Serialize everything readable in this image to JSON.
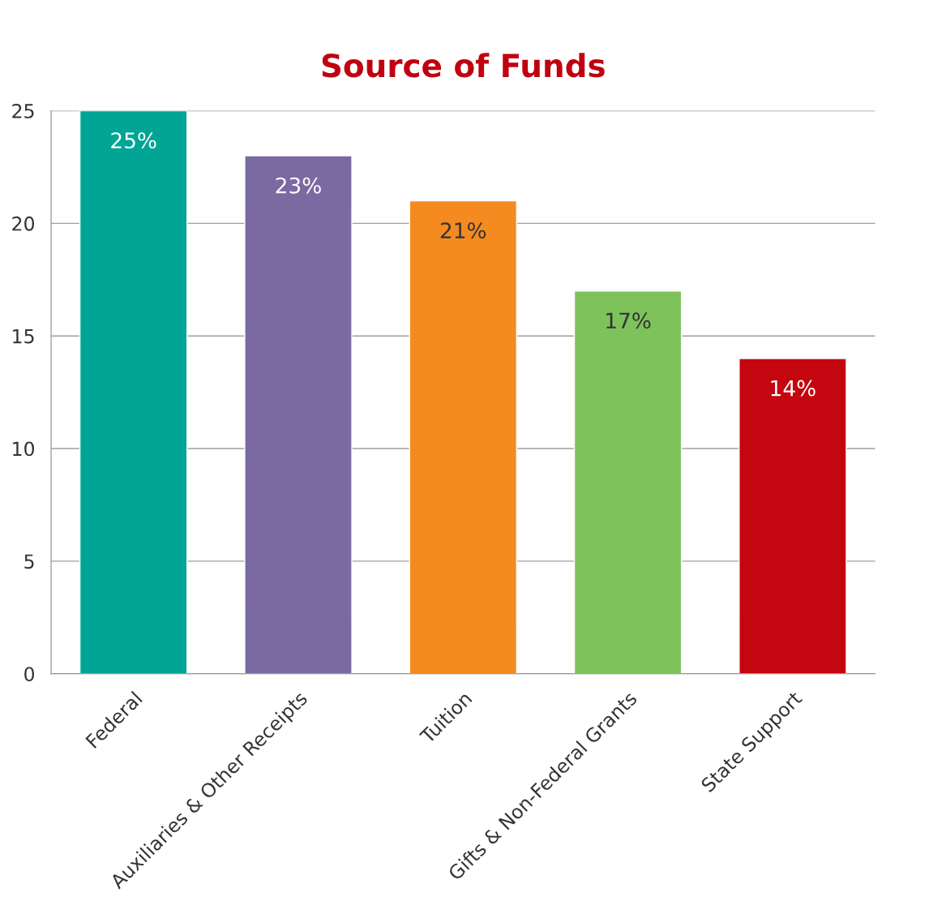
{
  "chart_data": {
    "type": "bar",
    "title": "Source of Funds",
    "categories": [
      "Federal",
      "Auxiliaries & Other Receipts",
      "Tuition",
      "Gifts & Non-Federal Grants",
      "State Support"
    ],
    "values": [
      25,
      23,
      21,
      17,
      14
    ],
    "colors": [
      "#00a595",
      "#7b69a2",
      "#f58b20",
      "#7dc25b",
      "#c3060f"
    ],
    "value_labels": [
      "25%",
      "23%",
      "21%",
      "17%",
      "14%"
    ],
    "ylim": [
      0,
      25
    ],
    "yticks": [
      0,
      5,
      10,
      15,
      20,
      25
    ],
    "grid": "y",
    "legend": false
  }
}
